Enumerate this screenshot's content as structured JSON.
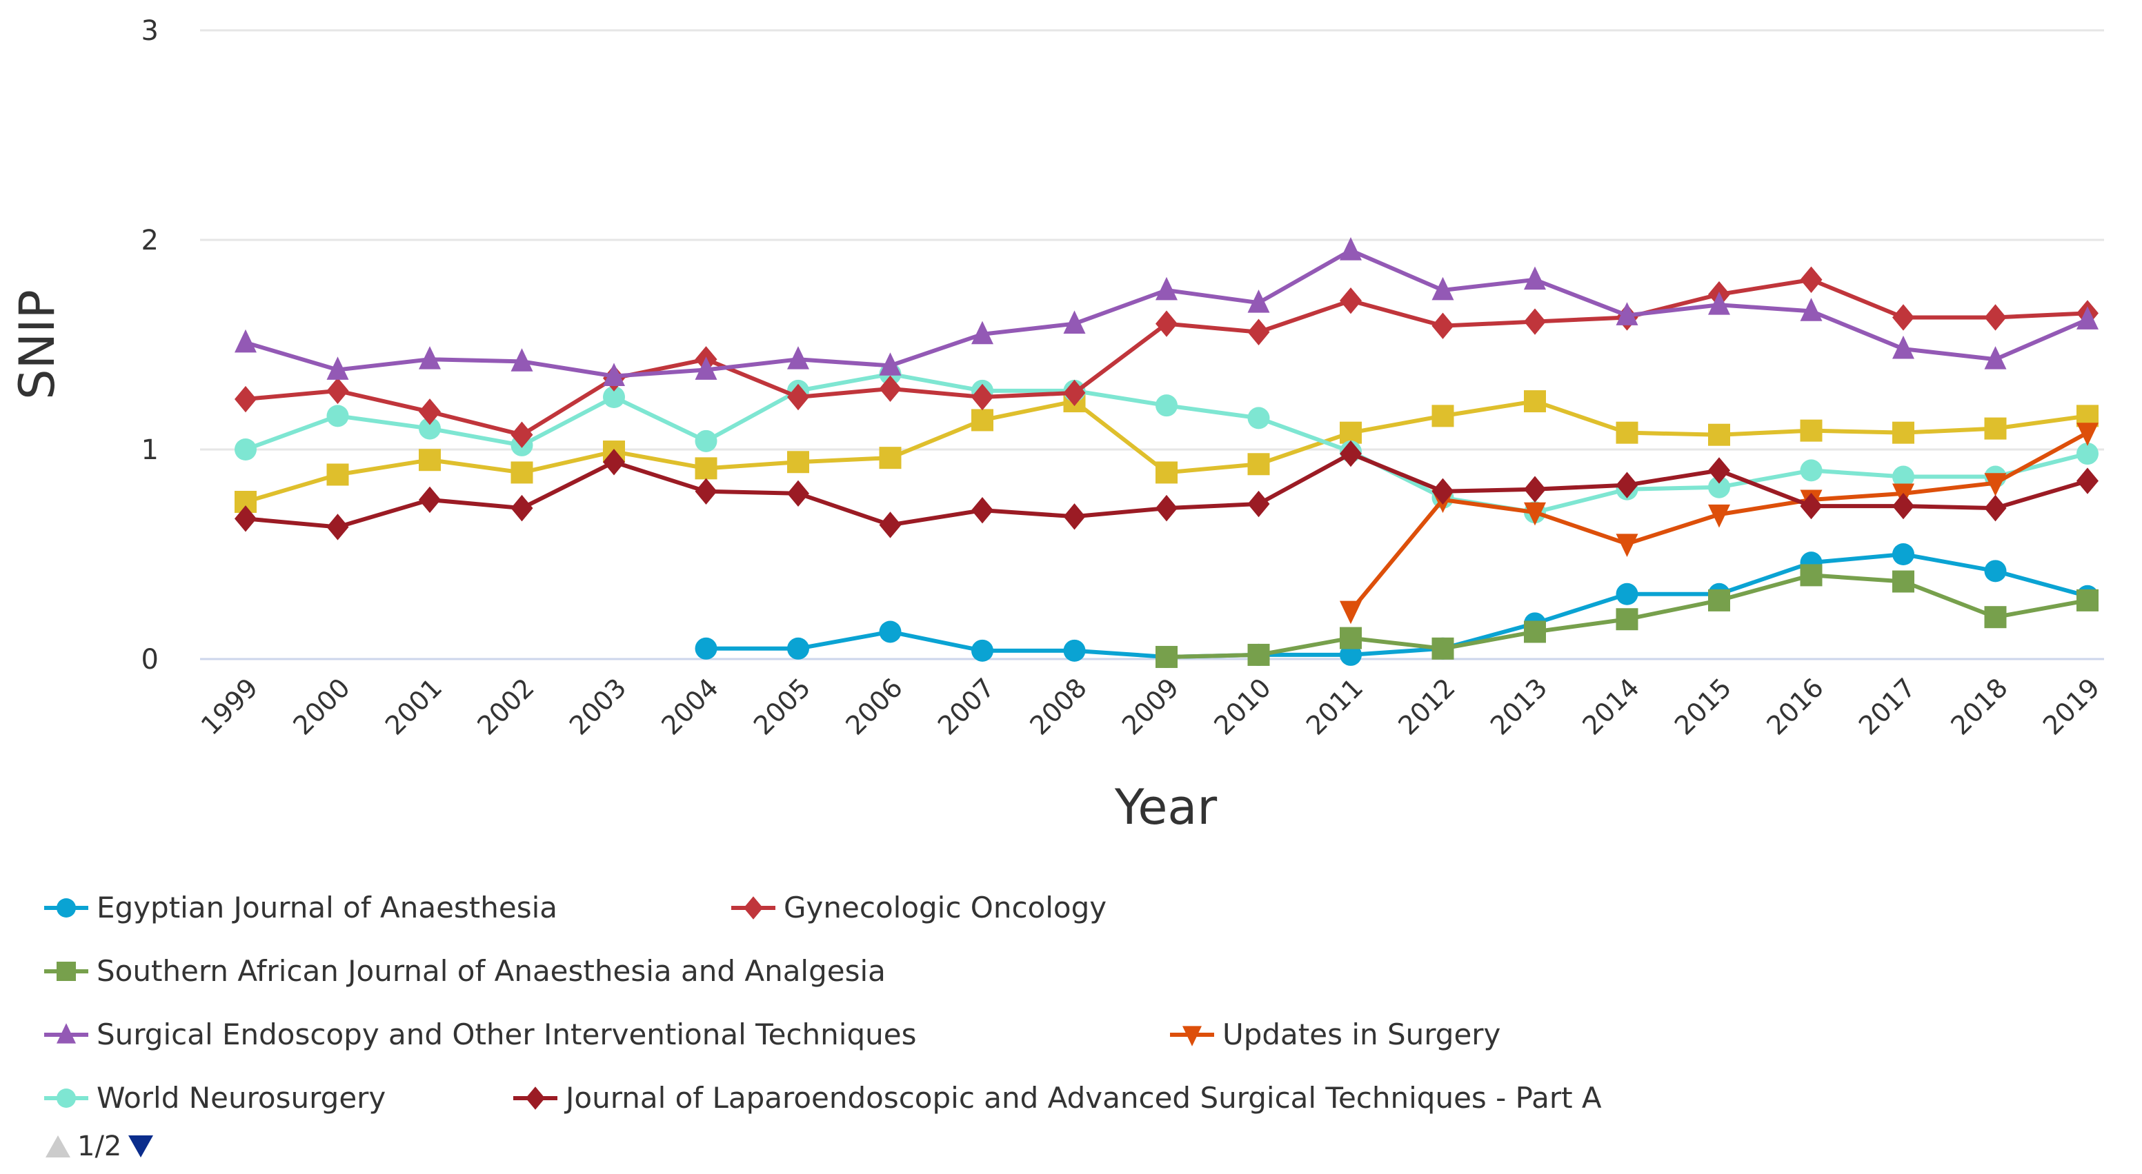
{
  "chart_data": {
    "type": "line",
    "title": "",
    "xlabel": "Year",
    "ylabel": "SNIP",
    "ylim": [
      0,
      3
    ],
    "yticks": [
      "0",
      "1",
      "2",
      "3"
    ],
    "grid": true,
    "legend_placement": "bottom",
    "x": [
      "1999",
      "2000",
      "2001",
      "2002",
      "2003",
      "2004",
      "2005",
      "2006",
      "2007",
      "2008",
      "2009",
      "2010",
      "2011",
      "2012",
      "2013",
      "2014",
      "2015",
      "2016",
      "2017",
      "2018",
      "2019"
    ],
    "series": [
      {
        "name": "Egyptian Journal of Anaesthesia",
        "color": "#0aa3d3",
        "marker": "circle",
        "values": [
          null,
          null,
          null,
          null,
          null,
          0.05,
          0.05,
          0.13,
          0.04,
          0.04,
          0.01,
          0.02,
          0.02,
          0.05,
          0.17,
          0.31,
          0.31,
          0.46,
          0.5,
          0.42,
          0.3
        ]
      },
      {
        "name": "Gynecologic Oncology",
        "color": "#c0353b",
        "marker": "diamond",
        "values": [
          1.24,
          1.28,
          1.18,
          1.07,
          1.34,
          1.43,
          1.25,
          1.29,
          1.25,
          1.27,
          1.6,
          1.56,
          1.71,
          1.59,
          1.61,
          1.63,
          1.74,
          1.81,
          1.63,
          1.63,
          1.65
        ]
      },
      {
        "name": "Southern African Journal of Anaesthesia and Analgesia",
        "color": "#77a04c",
        "marker": "square",
        "values": [
          null,
          null,
          null,
          null,
          null,
          null,
          null,
          null,
          null,
          null,
          0.01,
          0.02,
          0.1,
          0.05,
          0.13,
          0.19,
          0.28,
          0.4,
          0.37,
          0.2,
          0.28
        ]
      },
      {
        "name": "Surgical Endoscopy and Other Interventional Techniques",
        "color": "#9359b5",
        "marker": "triangle",
        "values": [
          1.51,
          1.38,
          1.43,
          1.42,
          1.35,
          1.38,
          1.43,
          1.4,
          1.55,
          1.6,
          1.76,
          1.7,
          1.95,
          1.76,
          1.81,
          1.64,
          1.69,
          1.66,
          1.48,
          1.43,
          1.62
        ]
      },
      {
        "name": "Updates in Surgery",
        "color": "#dd4f0a",
        "marker": "triangle-down",
        "values": [
          null,
          null,
          null,
          null,
          null,
          null,
          null,
          null,
          null,
          null,
          null,
          null,
          0.23,
          0.76,
          0.7,
          0.55,
          0.69,
          0.76,
          0.79,
          0.84,
          1.08
        ]
      },
      {
        "name": "World Neurosurgery",
        "color": "#7ee6d2",
        "marker": "circle",
        "values": [
          1.0,
          1.16,
          1.1,
          1.02,
          1.25,
          1.04,
          1.28,
          1.36,
          1.28,
          1.28,
          1.21,
          1.15,
          0.99,
          0.77,
          0.7,
          0.81,
          0.82,
          0.9,
          0.87,
          0.87,
          0.98
        ]
      },
      {
        "name": "Journal of Laparoendoscopic and Advanced Surgical Techniques - Part A",
        "color": "#9b1b24",
        "marker": "diamond",
        "values": [
          0.67,
          0.63,
          0.76,
          0.72,
          0.94,
          0.8,
          0.79,
          0.64,
          0.71,
          0.68,
          0.72,
          0.74,
          0.98,
          0.8,
          0.81,
          0.83,
          0.9,
          0.73,
          0.73,
          0.72,
          0.85
        ]
      },
      {
        "name": null,
        "color": "#dfbf2c",
        "marker": "square",
        "values": [
          0.75,
          0.88,
          0.95,
          0.89,
          0.99,
          0.91,
          0.94,
          0.96,
          1.14,
          1.23,
          0.89,
          0.93,
          1.08,
          1.16,
          1.23,
          1.08,
          1.07,
          1.09,
          1.08,
          1.1,
          1.16
        ]
      }
    ]
  },
  "legend": {
    "page": "1/2",
    "prev_color": "#cccccc",
    "next_color": "#0b2d8c"
  }
}
